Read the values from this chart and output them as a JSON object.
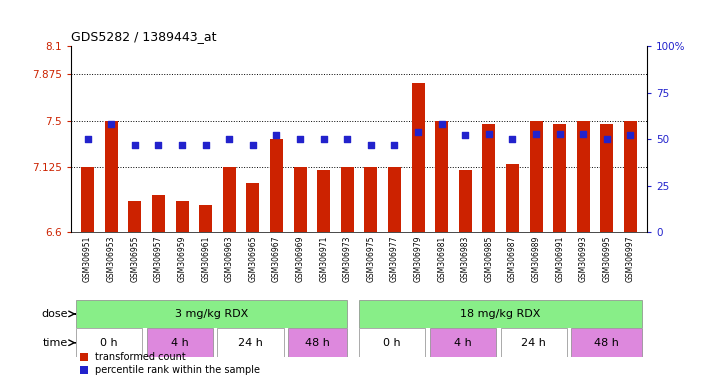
{
  "title": "GDS5282 / 1389443_at",
  "samples": [
    "GSM306951",
    "GSM306953",
    "GSM306955",
    "GSM306957",
    "GSM306959",
    "GSM306961",
    "GSM306963",
    "GSM306965",
    "GSM306967",
    "GSM306969",
    "GSM306971",
    "GSM306973",
    "GSM306975",
    "GSM306977",
    "GSM306979",
    "GSM306981",
    "GSM306983",
    "GSM306985",
    "GSM306987",
    "GSM306989",
    "GSM306991",
    "GSM306993",
    "GSM306995",
    "GSM306997"
  ],
  "bar_values": [
    7.125,
    7.5,
    6.85,
    6.9,
    6.85,
    6.82,
    7.125,
    7.0,
    7.35,
    7.125,
    7.1,
    7.125,
    7.125,
    7.125,
    7.8,
    7.5,
    7.1,
    7.47,
    7.15,
    7.5,
    7.47,
    7.5,
    7.47,
    7.5
  ],
  "percentile_values": [
    50,
    58,
    47,
    47,
    47,
    47,
    50,
    47,
    52,
    50,
    50,
    50,
    47,
    47,
    54,
    58,
    52,
    53,
    50,
    53,
    53,
    53,
    50,
    52
  ],
  "ylim_left": [
    6.6,
    8.1
  ],
  "ylim_right": [
    0,
    100
  ],
  "yticks_left": [
    6.6,
    7.125,
    7.5,
    7.875,
    8.1
  ],
  "yticks_right": [
    0,
    25,
    50,
    75,
    100
  ],
  "hlines": [
    7.125,
    7.5,
    7.875
  ],
  "bar_color": "#cc2200",
  "dot_color": "#2222cc",
  "bar_width": 0.55,
  "dose_color": "#88ee88",
  "dose_labels": [
    "3 mg/kg RDX",
    "18 mg/kg RDX"
  ],
  "time_labels": [
    "0 h",
    "4 h",
    "24 h",
    "48 h",
    "0 h",
    "4 h",
    "24 h",
    "48 h"
  ],
  "time_colors": [
    "#ffffff",
    "#dd88dd",
    "#ffffff",
    "#dd88dd",
    "#ffffff",
    "#dd88dd",
    "#ffffff",
    "#dd88dd"
  ],
  "xtick_bg": "#dddddd",
  "legend_labels": [
    "transformed count",
    "percentile rank within the sample"
  ],
  "legend_colors": [
    "#cc2200",
    "#2222cc"
  ]
}
